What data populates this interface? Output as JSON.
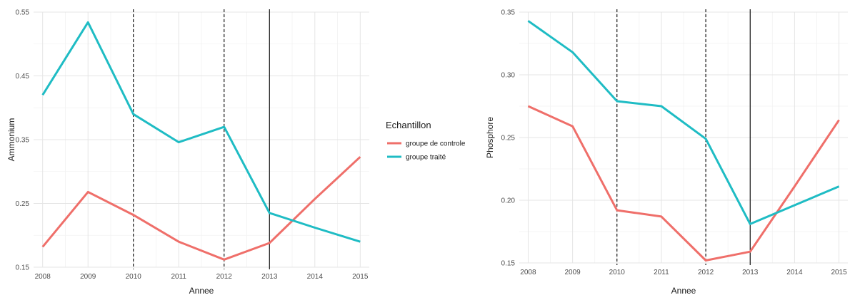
{
  "chart_data": [
    {
      "type": "line",
      "title": "",
      "xlabel": "Annee",
      "ylabel": "Ammonium",
      "x": [
        2008,
        2009,
        2010,
        2011,
        2012,
        2013,
        2014,
        2015
      ],
      "xlim": [
        2007.8,
        2015.2
      ],
      "ylim": [
        0.15,
        0.55
      ],
      "yticks": [
        "0.15",
        "0.25",
        "0.35",
        "0.45",
        "0.55"
      ],
      "series": [
        {
          "name": "groupe de controle",
          "color": "#ef6f6a",
          "values": [
            0.182,
            0.268,
            0.232,
            0.19,
            0.162,
            0.188,
            0.257,
            0.323
          ]
        },
        {
          "name": "groupe traité",
          "color": "#1fbcc4",
          "values": [
            0.42,
            0.534,
            0.39,
            0.346,
            0.37,
            0.235,
            0.212,
            0.19
          ]
        }
      ],
      "vlines": [
        {
          "x": 2010,
          "style": "dashed"
        },
        {
          "x": 2012,
          "style": "dashed"
        },
        {
          "x": 2013,
          "style": "solid"
        }
      ],
      "grid": true,
      "legend": "right"
    },
    {
      "type": "line",
      "title": "",
      "xlabel": "Annee",
      "ylabel": "Phosphore",
      "x": [
        2008,
        2009,
        2010,
        2011,
        2012,
        2013,
        2014,
        2015
      ],
      "xlim": [
        2007.8,
        2015.2
      ],
      "ylim": [
        0.15,
        0.35
      ],
      "yticks": [
        "0.15",
        "0.20",
        "0.25",
        "0.30",
        "0.35"
      ],
      "series": [
        {
          "name": "groupe de controle",
          "color": "#ef6f6a",
          "values": [
            0.275,
            0.259,
            0.192,
            0.187,
            0.152,
            0.159,
            0.211,
            0.264
          ]
        },
        {
          "name": "groupe traité",
          "color": "#1fbcc4",
          "values": [
            0.343,
            0.318,
            0.279,
            0.275,
            0.249,
            0.181,
            0.196,
            0.211
          ]
        }
      ],
      "vlines": [
        {
          "x": 2010,
          "style": "dashed"
        },
        {
          "x": 2012,
          "style": "dashed"
        },
        {
          "x": 2013,
          "style": "solid"
        }
      ],
      "grid": true
    }
  ],
  "legend": {
    "title": "Echantillon",
    "items": [
      {
        "label": "groupe de controle",
        "color": "#ef6f6a"
      },
      {
        "label": "groupe traité",
        "color": "#1fbcc4"
      }
    ]
  }
}
